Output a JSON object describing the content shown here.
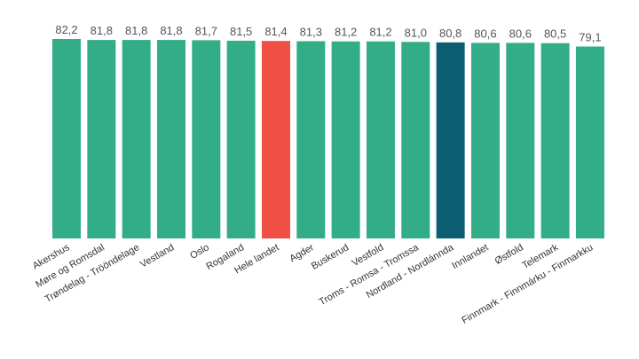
{
  "chart_data": {
    "type": "bar",
    "categories": [
      "Akershus",
      "Møre og Romsdal",
      "Trøndelag - Trööndelage",
      "Vestland",
      "Oslo",
      "Rogaland",
      "Hele landet",
      "Agder",
      "Buskerud",
      "Vestfold",
      "Troms - Romsa - Tromssa",
      "Nordland - Nordlánnda",
      "Innlandet",
      "Østfold",
      "Telemark",
      "Finnmark - Finnmárku - Finmarkku"
    ],
    "values": [
      82.2,
      81.8,
      81.8,
      81.8,
      81.7,
      81.5,
      81.4,
      81.3,
      81.2,
      81.2,
      81.0,
      80.8,
      80.6,
      80.6,
      80.5,
      79.1
    ],
    "value_labels": [
      "82,2",
      "81,8",
      "81,8",
      "81,8",
      "81,7",
      "81,5",
      "81,4",
      "81,3",
      "81,2",
      "81,2",
      "81,0",
      "80,8",
      "80,6",
      "80,6",
      "80,5",
      "79,1"
    ],
    "bar_colors": [
      "#33ad87",
      "#33ad87",
      "#33ad87",
      "#33ad87",
      "#33ad87",
      "#33ad87",
      "#ef4f45",
      "#33ad87",
      "#33ad87",
      "#33ad87",
      "#33ad87",
      "#0c5f73",
      "#33ad87",
      "#33ad87",
      "#33ad87",
      "#33ad87"
    ],
    "colors": {
      "default": "#33ad87",
      "national": "#ef4f45",
      "highlight": "#0c5f73"
    },
    "title": "",
    "xlabel": "",
    "ylabel": "",
    "ylim": [
      0,
      82.2
    ],
    "grid": false,
    "legend": "none"
  }
}
